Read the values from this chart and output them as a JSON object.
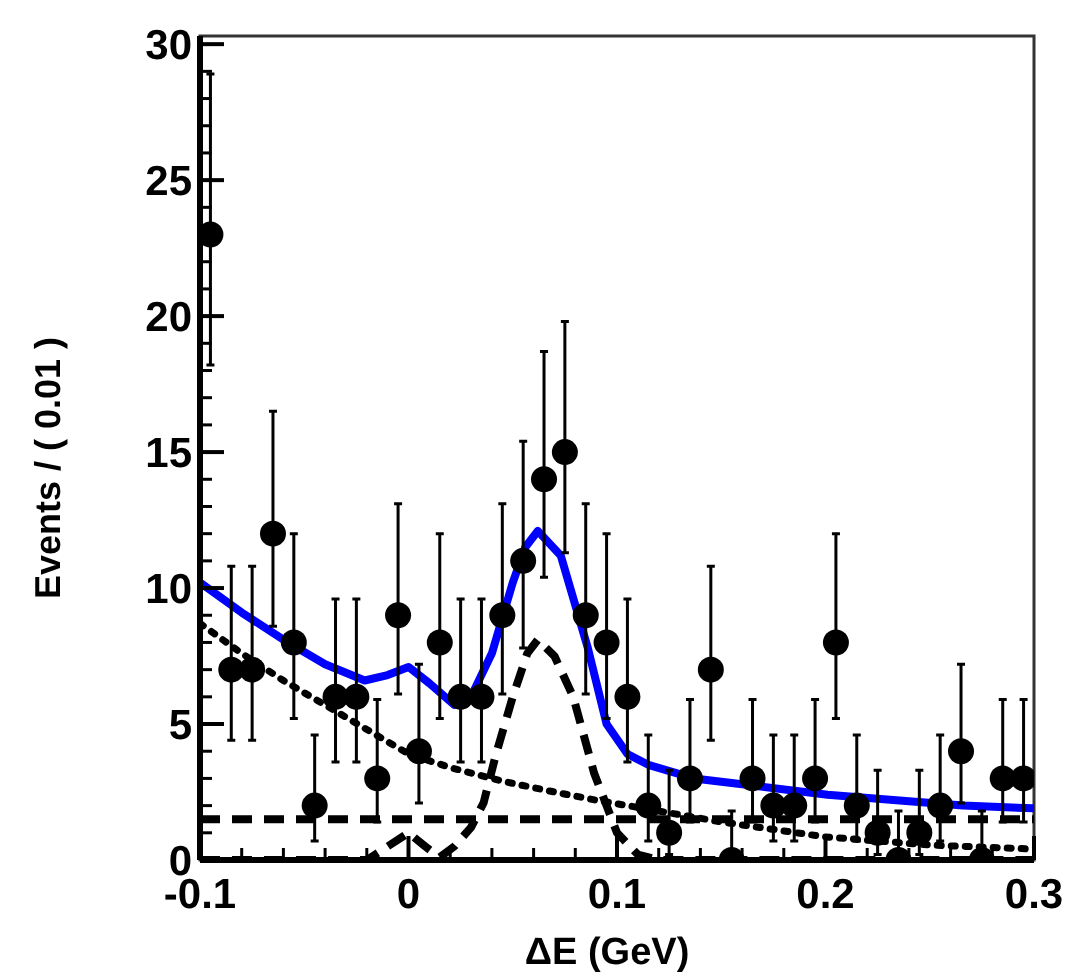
{
  "chart_data": {
    "type": "scatter",
    "xlabel": "ΔE (GeV)",
    "ylabel": "Events / ( 0.01 )",
    "xlim": [
      -0.1,
      0.3
    ],
    "ylim": [
      0,
      30.3
    ],
    "xticks": [
      -0.1,
      0,
      0.1,
      0.2,
      0.3
    ],
    "yticks": [
      0,
      5,
      10,
      15,
      20,
      25,
      30
    ],
    "series": [
      {
        "type": "line",
        "color": "#000000",
        "line_style": "dotted",
        "x": [
          -0.1,
          -0.08,
          -0.06,
          -0.04,
          -0.02,
          0,
          0.02,
          0.045,
          0.07,
          0.09,
          0.12,
          0.15,
          0.2,
          0.25,
          0.3
        ],
        "values": [
          8.7,
          7.6,
          6.6,
          5.7,
          4.8,
          3.9,
          3.4,
          2.9,
          2.5,
          2.2,
          1.8,
          1.4,
          0.85,
          0.55,
          0.4
        ]
      },
      {
        "type": "line",
        "color": "#000000",
        "line_style": "dashed",
        "x": [
          -0.1,
          0.3
        ],
        "values": [
          1.5,
          1.5
        ]
      },
      {
        "type": "line",
        "color": "#000000",
        "line_style": "dashed",
        "x": [
          -0.1,
          -0.02,
          -0.01,
          0,
          0.008,
          0.015,
          0.022,
          0.03,
          0.036,
          0.042,
          0.05,
          0.057,
          0.062,
          0.07,
          0.079,
          0.089,
          0.1,
          0.11,
          0.12,
          0.3
        ],
        "values": [
          0,
          0,
          0.5,
          1.0,
          0.5,
          0.1,
          0.5,
          1.2,
          2.1,
          3.9,
          6.0,
          7.6,
          8.1,
          7.5,
          6.0,
          3.2,
          1.0,
          0.2,
          0,
          0
        ]
      },
      {
        "type": "line",
        "color": "#0000ff",
        "line_style": "solid",
        "x": [
          -0.1,
          -0.08,
          -0.06,
          -0.04,
          -0.021,
          -0.01,
          0,
          0.01,
          0.022,
          0.03,
          0.04,
          0.05,
          0.056,
          0.062,
          0.073,
          0.086,
          0.095,
          0.105,
          0.115,
          0.137,
          0.169,
          0.201,
          0.234,
          0.266,
          0.3
        ],
        "values": [
          10.2,
          9.1,
          8.1,
          7.2,
          6.6,
          6.8,
          7.1,
          6.5,
          5.7,
          6.0,
          7.6,
          10.2,
          11.5,
          12.1,
          11.2,
          7.8,
          5.0,
          3.9,
          3.5,
          3.0,
          2.7,
          2.4,
          2.2,
          2.0,
          1.9
        ]
      },
      {
        "color": "#000000",
        "marker": "circle",
        "x": [
          -0.095,
          -0.085,
          -0.075,
          -0.065,
          -0.055,
          -0.045,
          -0.035,
          -0.025,
          -0.015,
          -0.005,
          0.005,
          0.015,
          0.025,
          0.035,
          0.045,
          0.055,
          0.065,
          0.075,
          0.085,
          0.095,
          0.105,
          0.115,
          0.125,
          0.135,
          0.145,
          0.155,
          0.165,
          0.175,
          0.185,
          0.195,
          0.205,
          0.215,
          0.225,
          0.235,
          0.245,
          0.255,
          0.265,
          0.275,
          0.285,
          0.295
        ],
        "values": [
          23,
          7,
          7,
          12,
          8,
          2,
          6,
          6,
          3,
          9,
          4,
          8,
          6,
          6,
          9,
          11,
          14,
          15,
          9,
          8,
          6,
          2,
          1,
          3,
          7,
          0,
          3,
          2,
          2,
          3,
          8,
          2,
          1,
          0,
          1,
          2,
          4,
          0,
          3,
          3
        ],
        "errors": [
          [
            18.2,
            28.9
          ],
          [
            4.4,
            10.8
          ],
          [
            4.4,
            10.8
          ],
          [
            8.6,
            16.5
          ],
          [
            5.2,
            12.0
          ],
          [
            0.7,
            4.6
          ],
          [
            3.6,
            9.6
          ],
          [
            3.6,
            9.6
          ],
          [
            1.4,
            5.9
          ],
          [
            6.1,
            13.1
          ],
          [
            2.1,
            7.2
          ],
          [
            5.2,
            12.0
          ],
          [
            3.6,
            9.6
          ],
          [
            3.6,
            9.6
          ],
          [
            6.1,
            13.1
          ],
          [
            7.8,
            15.4
          ],
          [
            10.4,
            18.7
          ],
          [
            11.3,
            19.8
          ],
          [
            6.1,
            13.1
          ],
          [
            5.2,
            12.0
          ],
          [
            3.6,
            9.6
          ],
          [
            0.7,
            4.6
          ],
          [
            0.2,
            3.3
          ],
          [
            1.4,
            5.9
          ],
          [
            4.4,
            10.8
          ],
          [
            0,
            1.8
          ],
          [
            1.4,
            5.9
          ],
          [
            0.7,
            4.6
          ],
          [
            0.7,
            4.6
          ],
          [
            1.4,
            5.9
          ],
          [
            5.2,
            12.0
          ],
          [
            0.7,
            4.6
          ],
          [
            0.2,
            3.3
          ],
          [
            0,
            1.8
          ],
          [
            0.2,
            3.3
          ],
          [
            0.7,
            4.6
          ],
          [
            2.1,
            7.2
          ],
          [
            0,
            1.8
          ],
          [
            1.4,
            5.9
          ],
          [
            1.4,
            5.9
          ]
        ]
      }
    ]
  }
}
